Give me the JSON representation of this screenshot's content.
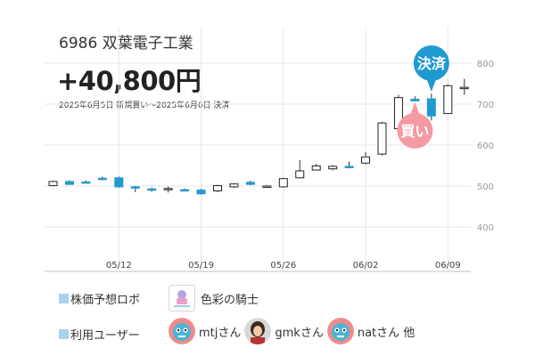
{
  "header": {
    "stock_name": "6986 双葉電子工業",
    "profit": "+40,800円",
    "period": "2025年6月5日 新規買い〜2025年6月6日 決済"
  },
  "chart_data": {
    "type": "candlestick",
    "ylim": [
      300,
      850
    ],
    "y_ticks": [
      "800",
      "700",
      "600",
      "500",
      "400"
    ],
    "x_ticks": [
      "05/12",
      "05/19",
      "05/26",
      "06/02",
      "06/09"
    ],
    "colors": {
      "up": "#ffffff",
      "down": "#1e9ad1",
      "wick": "#333333",
      "grid": "#e6e6e6"
    },
    "candles": [
      {
        "date": "05/08",
        "open": 501,
        "high": 513,
        "low": 500,
        "close": 511
      },
      {
        "date": "05/09",
        "open": 511,
        "high": 514,
        "low": 503,
        "close": 504
      },
      {
        "date": "05/10",
        "open": 510,
        "high": 514,
        "low": 506,
        "close": 509
      },
      {
        "date": "05/11",
        "open": 519,
        "high": 523,
        "low": 514,
        "close": 516
      },
      {
        "date": "05/12",
        "open": 520,
        "high": 523,
        "low": 496,
        "close": 498
      },
      {
        "date": "05/13",
        "open": 498,
        "high": 500,
        "low": 485,
        "close": 496
      },
      {
        "date": "05/14",
        "open": 493,
        "high": 496,
        "low": 486,
        "close": 491
      },
      {
        "date": "05/15",
        "open": 493,
        "high": 499,
        "low": 484,
        "close": 494
      },
      {
        "date": "05/16",
        "open": 491,
        "high": 494,
        "low": 487,
        "close": 490
      },
      {
        "date": "05/19",
        "open": 490,
        "high": 493,
        "low": 479,
        "close": 481
      },
      {
        "date": "05/20",
        "open": 488,
        "high": 503,
        "low": 485,
        "close": 501
      },
      {
        "date": "05/21",
        "open": 498,
        "high": 507,
        "low": 495,
        "close": 505
      },
      {
        "date": "05/22",
        "open": 509,
        "high": 513,
        "low": 502,
        "close": 504
      },
      {
        "date": "05/23",
        "open": 500,
        "high": 502,
        "low": 497,
        "close": 500
      },
      {
        "date": "05/26",
        "open": 498,
        "high": 520,
        "low": 496,
        "close": 518
      },
      {
        "date": "05/27",
        "open": 520,
        "high": 563,
        "low": 519,
        "close": 537
      },
      {
        "date": "05/28",
        "open": 539,
        "high": 554,
        "low": 538,
        "close": 549
      },
      {
        "date": "05/29",
        "open": 542,
        "high": 551,
        "low": 538,
        "close": 548
      },
      {
        "date": "05/30",
        "open": 548,
        "high": 560,
        "low": 543,
        "close": 546
      },
      {
        "date": "06/02",
        "open": 556,
        "high": 583,
        "low": 553,
        "close": 571
      },
      {
        "date": "06/03",
        "open": 578,
        "high": 657,
        "low": 575,
        "close": 654
      },
      {
        "date": "06/04",
        "open": 640,
        "high": 723,
        "low": 630,
        "close": 716
      },
      {
        "date": "06/05",
        "open": 712,
        "high": 719,
        "low": 709,
        "close": 708
      },
      {
        "date": "06/06",
        "open": 713,
        "high": 726,
        "low": 660,
        "close": 671
      },
      {
        "date": "06/09",
        "open": 677,
        "high": 749,
        "low": 676,
        "close": 745
      },
      {
        "date": "06/10",
        "open": 740,
        "high": 762,
        "low": 723,
        "close": 741
      }
    ],
    "markers": [
      {
        "label": "決済",
        "candle": "06/06",
        "color": "#1e9ad1",
        "position": "above"
      },
      {
        "label": "買い",
        "candle": "06/05",
        "color": "#f59aa3",
        "position": "below"
      }
    ]
  },
  "footer": {
    "robot_label": "株価予想ロボ",
    "robot_name": "色彩の騎士",
    "users_label": "利用ユーザー",
    "users": [
      "mtjさん",
      "gmkさん",
      "natさん 他"
    ]
  }
}
